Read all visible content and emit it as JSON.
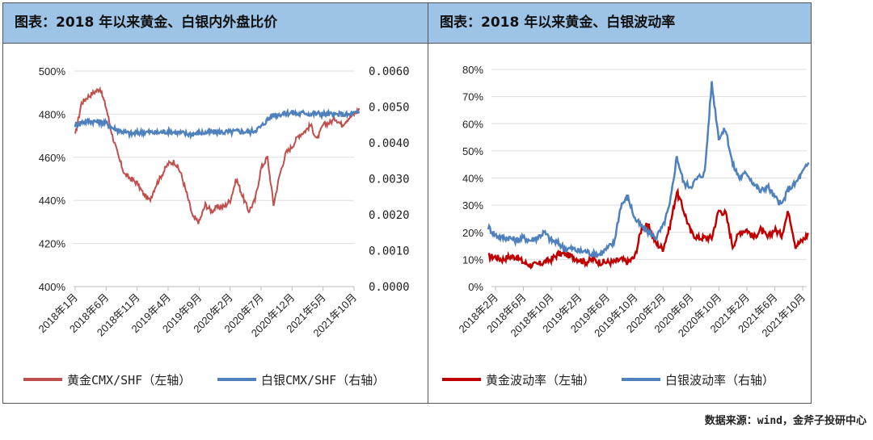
{
  "source": "数据来源：wind，金斧子投研中心",
  "chart_data": [
    {
      "type": "line",
      "title": "图表：2018 年以来黄金、白银内外盘比价",
      "x_start": "2018-01",
      "x_tick_labels": [
        "2018年1月",
        "2018年6月",
        "2018年11月",
        "2019年4月",
        "2019年9月",
        "2020年2月",
        "2020年7月",
        "2020年12月",
        "2021年5月",
        "2021年10月"
      ],
      "y_left": {
        "ylim": [
          4.0,
          5.0
        ],
        "ticks": [
          "400%",
          "420%",
          "440%",
          "460%",
          "480%",
          "500%"
        ]
      },
      "y_right": {
        "ylim": [
          0,
          0.006
        ],
        "ticks": [
          "0.0000",
          "0.0010",
          "0.0020",
          "0.0030",
          "0.0040",
          "0.0050",
          "0.0060"
        ]
      },
      "grid": true,
      "legend_position": "bottom",
      "series": [
        {
          "name": "黄金CMX/SHF（左轴）",
          "axis": "left",
          "color": "#C0504D",
          "values": [
            4.7,
            4.85,
            4.88,
            4.9,
            4.92,
            4.83,
            4.7,
            4.6,
            4.52,
            4.5,
            4.48,
            4.43,
            4.4,
            4.47,
            4.52,
            4.57,
            4.58,
            4.53,
            4.43,
            4.32,
            4.3,
            4.38,
            4.35,
            4.37,
            4.37,
            4.4,
            4.5,
            4.42,
            4.35,
            4.4,
            4.55,
            4.6,
            4.38,
            4.52,
            4.62,
            4.65,
            4.7,
            4.72,
            4.75,
            4.68,
            4.75,
            4.76,
            4.78,
            4.75,
            4.78,
            4.8,
            4.83
          ]
        },
        {
          "name": "白银CMX/SHF（右轴）",
          "axis": "right",
          "color": "#4F81BD",
          "values": [
            0.0045,
            0.00458,
            0.0046,
            0.0046,
            0.00458,
            0.00455,
            0.00442,
            0.00435,
            0.0043,
            0.00425,
            0.00428,
            0.0043,
            0.0043,
            0.00428,
            0.0043,
            0.00432,
            0.0043,
            0.00428,
            0.00425,
            0.00425,
            0.00428,
            0.00428,
            0.0043,
            0.0043,
            0.0043,
            0.0043,
            0.00432,
            0.00432,
            0.0043,
            0.00435,
            0.00445,
            0.00465,
            0.00478,
            0.0048,
            0.00482,
            0.00485,
            0.0048,
            0.00485,
            0.0048,
            0.00482,
            0.0048,
            0.0048,
            0.00478,
            0.0048,
            0.00478,
            0.00482,
            0.00485
          ]
        }
      ]
    },
    {
      "type": "line",
      "title": "图表：2018 年以来黄金、白银波动率",
      "x_start": "2018-01",
      "x_tick_labels": [
        "2018年2月",
        "2018年6月",
        "2018年10月",
        "2019年2月",
        "2019年6月",
        "2019年10月",
        "2020年2月",
        "2020年6月",
        "2020年10月",
        "2021年2月",
        "2021年6月",
        "2021年10月"
      ],
      "y_left": {
        "ylim": [
          0,
          0.8
        ],
        "ticks": [
          "0%",
          "10%",
          "20%",
          "30%",
          "40%",
          "50%",
          "60%",
          "70%",
          "80%"
        ]
      },
      "grid": true,
      "legend_position": "bottom",
      "series": [
        {
          "name": "黄金波动率（左轴）",
          "color": "#C00000",
          "values": [
            11,
            11,
            10,
            11,
            11,
            9,
            8,
            8,
            9,
            10,
            12,
            12,
            11,
            10,
            9,
            10,
            9,
            9,
            9,
            10,
            9,
            11,
            22,
            22,
            16,
            14,
            22,
            35,
            28,
            20,
            18,
            18,
            18,
            28,
            27,
            15,
            20,
            21,
            18,
            21,
            18,
            21,
            19,
            28,
            15,
            17,
            20
          ]
        },
        {
          "name": "白银波动率（右轴）",
          "color": "#4F81BD",
          "values": [
            22,
            19,
            18,
            18,
            17,
            18,
            17,
            18,
            20,
            17,
            16,
            14,
            14,
            13,
            13,
            12,
            12,
            14,
            16,
            30,
            33,
            25,
            22,
            20,
            18,
            22,
            30,
            48,
            38,
            37,
            40,
            42,
            75,
            55,
            58,
            45,
            40,
            42,
            38,
            35,
            37,
            33,
            30,
            36,
            38,
            42,
            46
          ]
        }
      ]
    }
  ]
}
